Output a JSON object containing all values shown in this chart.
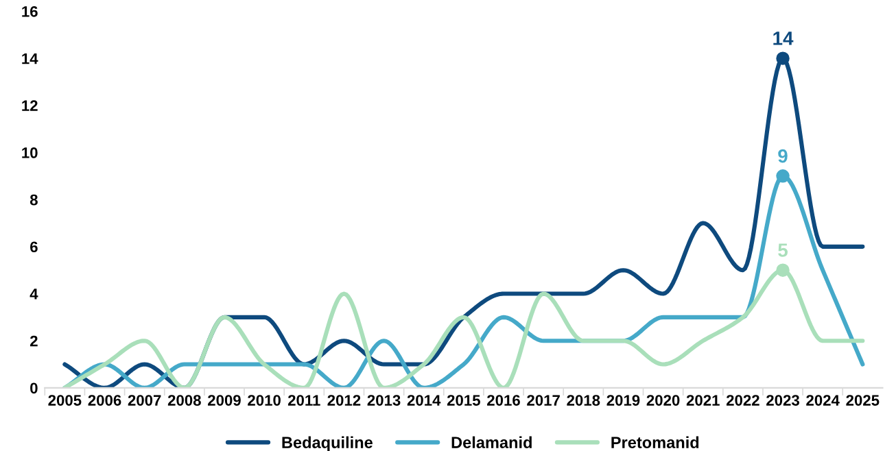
{
  "chart_data": {
    "type": "line",
    "categories": [
      "2005",
      "2006",
      "2007",
      "2008",
      "2009",
      "2010",
      "2011",
      "2012",
      "2013",
      "2014",
      "2015",
      "2016",
      "2017",
      "2018",
      "2019",
      "2020",
      "2021",
      "2022",
      "2023",
      "2024",
      "2025"
    ],
    "series": [
      {
        "name": "Bedaquiline",
        "color": "#0e4a7e",
        "values": [
          1,
          0,
          1,
          0,
          3,
          3,
          1,
          2,
          1,
          1,
          3,
          4,
          4,
          4,
          5,
          4,
          7,
          5,
          14,
          6,
          6
        ],
        "value_labels": [
          null,
          null,
          null,
          null,
          null,
          null,
          null,
          null,
          null,
          null,
          null,
          null,
          null,
          null,
          null,
          null,
          null,
          null,
          "14",
          null,
          null
        ]
      },
      {
        "name": "Delamanid",
        "color": "#45a9c9",
        "values": [
          0,
          1,
          0,
          1,
          1,
          1,
          1,
          0,
          2,
          0,
          1,
          3,
          2,
          2,
          2,
          3,
          3,
          3,
          9,
          5,
          1
        ],
        "value_labels": [
          null,
          null,
          null,
          null,
          null,
          null,
          null,
          null,
          null,
          null,
          null,
          null,
          null,
          null,
          null,
          null,
          null,
          null,
          "9",
          null,
          null
        ]
      },
      {
        "name": "Pretomanid",
        "color": "#a9dfba",
        "values": [
          0,
          1,
          2,
          0,
          3,
          1,
          0,
          4,
          0,
          1,
          3,
          0,
          4,
          2,
          2,
          1,
          2,
          3,
          5,
          2,
          2
        ],
        "value_labels": [
          null,
          null,
          null,
          null,
          null,
          null,
          null,
          null,
          null,
          null,
          null,
          null,
          null,
          null,
          null,
          null,
          null,
          null,
          "5",
          null,
          null
        ]
      }
    ],
    "ylim": [
      0,
      16
    ],
    "yticks": [
      0,
      2,
      4,
      6,
      8,
      10,
      12,
      14,
      16
    ],
    "grid": false,
    "legend": "bottom"
  }
}
